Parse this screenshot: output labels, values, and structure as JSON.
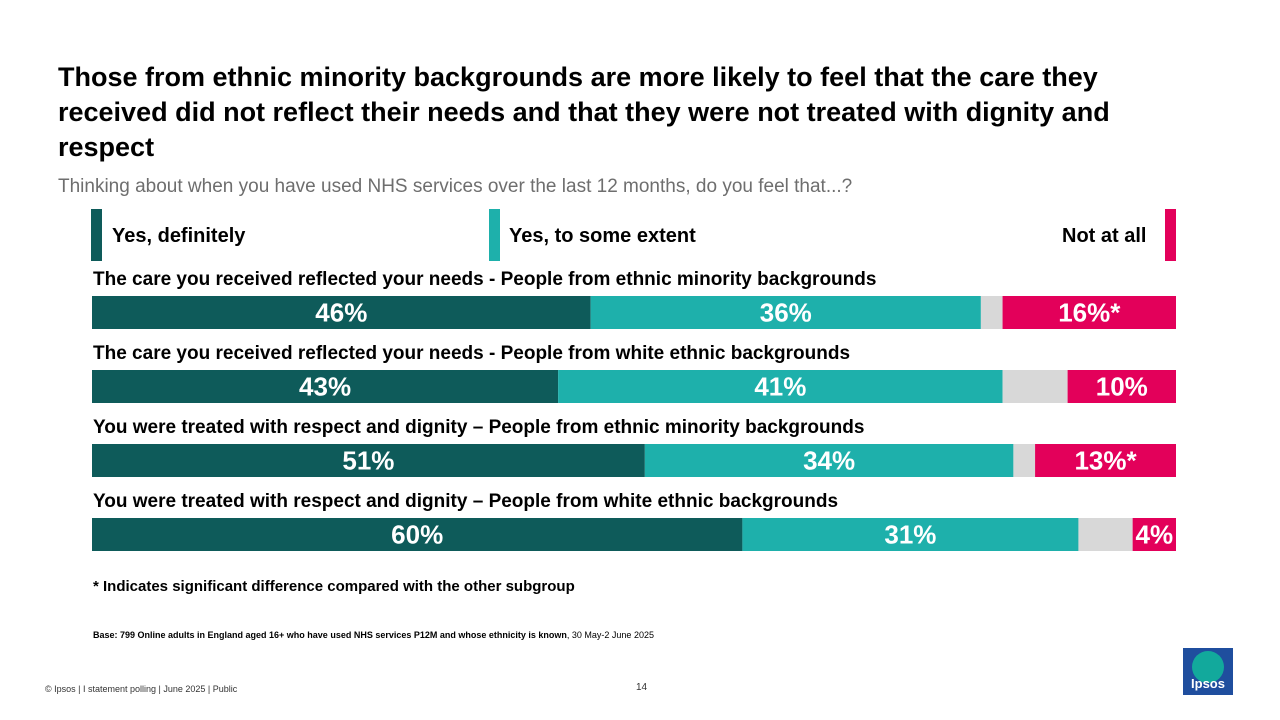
{
  "title": "Those from ethnic minority backgrounds are more likely to feel that the care they received did not reflect their needs and that they were not treated with dignity and respect",
  "subtitle": "Thinking about when you have used NHS services over the last 12 months, do you feel that...?",
  "colors": {
    "definitely": "#0e5b5a",
    "some_extent": "#1eb0ab",
    "dont_know": "#d8d8d8",
    "not_at_all": "#e3005a"
  },
  "legend": {
    "definitely": "Yes, definitely",
    "some_extent": "Yes, to some extent",
    "not_at_all": "Not at all"
  },
  "chart_data": {
    "type": "bar",
    "orientation": "horizontal-stacked-100",
    "categories": [
      "The care you received reflected your needs - People from ethnic minority backgrounds",
      "The care you received reflected your needs - People from white ethnic backgrounds",
      "You were treated with respect and dignity – People from ethnic minority backgrounds",
      "You were treated with respect and dignity – People from white ethnic backgrounds"
    ],
    "series": [
      {
        "name": "Yes, definitely",
        "key": "definitely",
        "values": [
          46,
          43,
          51,
          60
        ],
        "labels": [
          "46%",
          "43%",
          "51%",
          "60%"
        ]
      },
      {
        "name": "Yes, to some extent",
        "key": "some_extent",
        "values": [
          36,
          41,
          34,
          31
        ],
        "labels": [
          "36%",
          "41%",
          "34%",
          "31%"
        ]
      },
      {
        "key": "dont_know",
        "values": [
          2,
          6,
          2,
          5
        ],
        "labels": [
          "",
          "",
          "",
          ""
        ]
      },
      {
        "name": "Not at all",
        "key": "not_at_all",
        "values": [
          16,
          10,
          13,
          4
        ],
        "labels": [
          "16%*",
          "10%",
          "13%*",
          "4%"
        ]
      }
    ],
    "xlim": [
      0,
      100
    ]
  },
  "footnote": "* Indicates significant difference compared with the other subgroup",
  "base_bold": "Base: 799 Online adults in England aged 16+ who have used NHS services P12M  and whose ethnicity is known",
  "base_rest": ", 30 May-2 June 2025",
  "footer": "© Ipsos | I statement polling | June 2025 | Public",
  "page_number": "14",
  "logo_text": "Ipsos"
}
